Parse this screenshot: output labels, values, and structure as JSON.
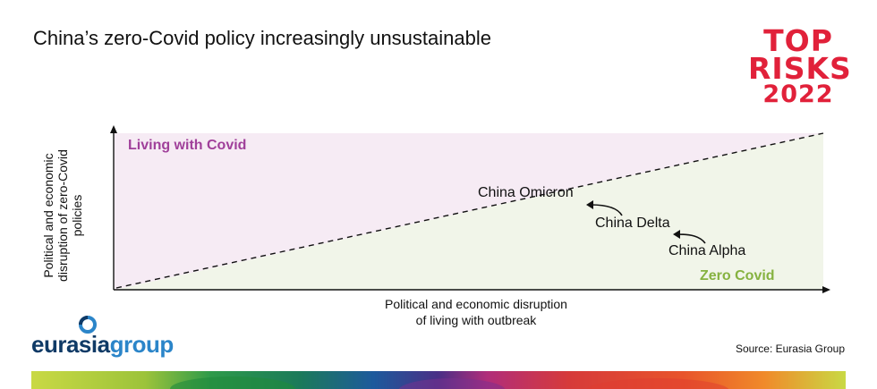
{
  "header": {
    "title": "China’s zero-Covid policy increasingly unsustainable",
    "brand_line1": "TOP",
    "brand_line2": "RISKS",
    "brand_line3": "2022"
  },
  "diagram": {
    "y_axis_label": "Political and economic disruption of zero-Covid policies",
    "x_axis_label_line1": "Political and economic disruption",
    "x_axis_label_line2": "of living with outbreak",
    "region_upper": "Living with Covid",
    "region_lower": "Zero Covid",
    "points": [
      {
        "label": "China Omicron"
      },
      {
        "label": "China Delta"
      },
      {
        "label": "China Alpha"
      }
    ],
    "colors": {
      "upper_region": "#f6ebf4",
      "lower_region": "#f1f5e9",
      "upper_label": "#a0409a",
      "lower_label": "#86b240",
      "axis": "#111111"
    }
  },
  "footer": {
    "logo_part1": "eurasia",
    "logo_part2": "group",
    "logo_icon": "eurasia-group-mark-icon",
    "source": "Source: Eurasia Group"
  }
}
